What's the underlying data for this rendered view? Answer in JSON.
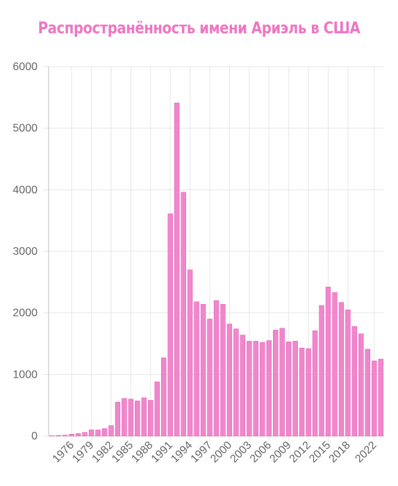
{
  "colors": {
    "title": "#ee77c3",
    "bar_fill": "#f087cc",
    "bar_stroke": "#e35fb4",
    "grid": "#e6e6e6",
    "axis": "#bdbdbd",
    "tick_text": "#666666"
  },
  "chart_data": {
    "type": "bar",
    "title": "Распространённость имени Ариэль в США",
    "xlabel": "",
    "ylabel": "",
    "ylim": [
      0,
      6000
    ],
    "y_ticks": [
      0,
      1000,
      2000,
      3000,
      4000,
      5000,
      6000
    ],
    "x_tick_labels": [
      "1976",
      "1979",
      "1982",
      "1985",
      "1988",
      "1991",
      "1994",
      "1997",
      "2000",
      "2003",
      "2006",
      "2009",
      "2012",
      "2015",
      "2018",
      "2022"
    ],
    "grid": true,
    "legend": "none",
    "categories": [
      1973,
      1974,
      1975,
      1976,
      1977,
      1978,
      1979,
      1980,
      1981,
      1982,
      1983,
      1984,
      1985,
      1986,
      1987,
      1988,
      1989,
      1990,
      1991,
      1992,
      1993,
      1994,
      1995,
      1996,
      1997,
      1998,
      1999,
      2000,
      2001,
      2002,
      2003,
      2004,
      2005,
      2006,
      2007,
      2008,
      2009,
      2010,
      2011,
      2012,
      2013,
      2014,
      2015,
      2016,
      2017,
      2018,
      2019,
      2020,
      2021,
      2022,
      2023
    ],
    "values": [
      5,
      10,
      15,
      30,
      40,
      60,
      100,
      100,
      120,
      170,
      550,
      610,
      600,
      570,
      620,
      580,
      880,
      1270,
      3610,
      5410,
      3960,
      2700,
      2180,
      2140,
      1900,
      2200,
      2140,
      1820,
      1740,
      1640,
      1540,
      1540,
      1520,
      1550,
      1720,
      1750,
      1530,
      1540,
      1430,
      1420,
      1710,
      2120,
      2420,
      2330,
      2170,
      2050,
      1780,
      1660,
      1410,
      1220,
      1250
    ]
  }
}
